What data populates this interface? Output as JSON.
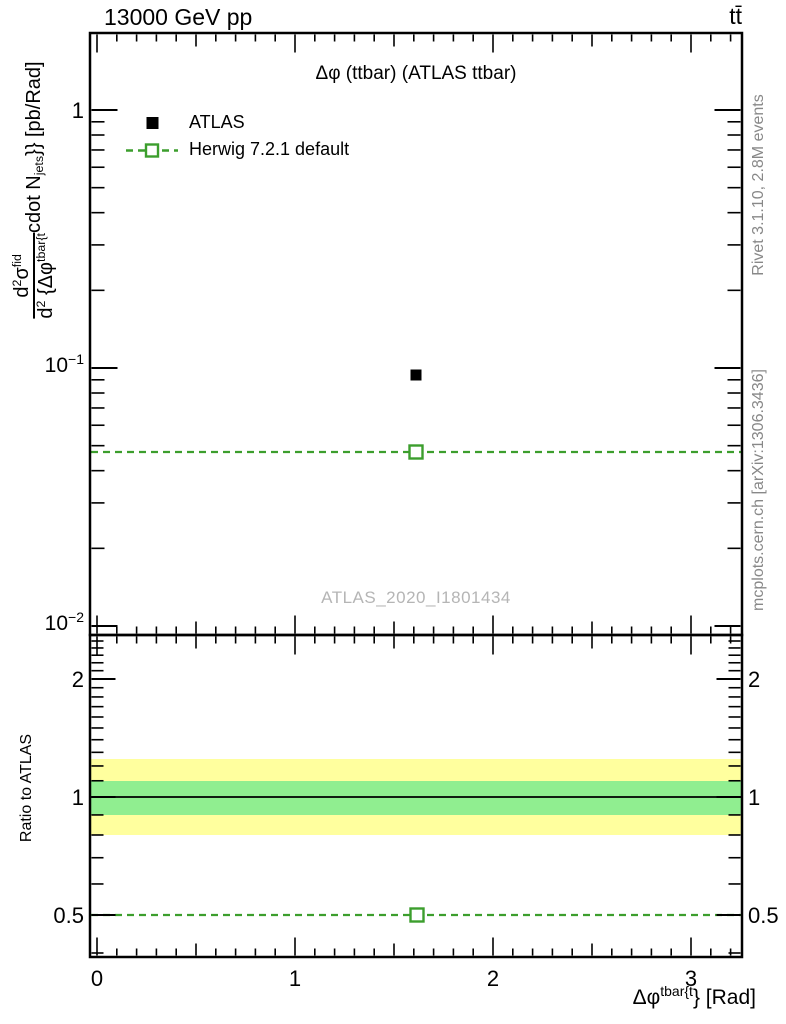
{
  "header": {
    "beam": "13000 GeV pp",
    "process": "tt̄"
  },
  "main_panel": {
    "title": "Δφ (ttbar) (ATLAS ttbar)",
    "watermark": "ATLAS_2020_I1801434",
    "legend": {
      "atlas_label": "ATLAS",
      "herwig_label": "Herwig 7.2.1 default"
    },
    "ylabel": {
      "num_d": "d",
      "num_exp": "2",
      "num_sigma": "σ",
      "num_sup": "fid",
      "den_d": "d",
      "den_exp": "2",
      "den_mid": " {Δφ",
      "den_sup": "tbar{t",
      "tail_cdot": " cdot N",
      "tail_sub": "jets",
      "tail_end": "}} [pb/Rad]"
    },
    "ytick_1": "1",
    "ytick_01_base": "10",
    "ytick_01_exp": "−1",
    "ytick_001_base": "10",
    "ytick_001_exp": "−2"
  },
  "ratio_panel": {
    "ylabel": "Ratio to ATLAS",
    "yticks_left": [
      "2",
      "1",
      "0.5"
    ],
    "yticks_right": [
      "2",
      "1",
      "0.5"
    ]
  },
  "xaxis": {
    "ticks": [
      "0",
      "1",
      "2",
      "3"
    ],
    "label_base": "Δφ",
    "label_sup": "tbar{t",
    "label_end": "} [Rad]"
  },
  "sidebar": {
    "top": "Rivet 3.1.10,  2.8M events",
    "bottom": "mcplots.cern.ch [arXiv:1306.3436]"
  },
  "colors": {
    "herwig_green": "#3c9e2d",
    "band_yellow": "#ffff9e",
    "band_green": "#90ee90",
    "watermark_gray": "#b5b5b5",
    "side_text_gray": "#888888"
  },
  "chart_data": {
    "type": "scatter",
    "title": "Δφ (ttbar) (ATLAS ttbar)",
    "xlabel": "Δφ^{tbar{t}} [Rad]",
    "ylabel": "d^2σ^{fid} / d^2{Δφ^{tbar{t}} cdot N_{jets}} [pb/Rad]",
    "x_range": [
      -0.04,
      3.26
    ],
    "y_scale": "log",
    "y_range": [
      0.0092,
      2.0
    ],
    "xticks": [
      0,
      1,
      2,
      3
    ],
    "yticks": [
      1,
      0.1,
      0.01
    ],
    "grid": false,
    "legend_position": "top-left",
    "series": [
      {
        "name": "ATLAS",
        "marker": "filled-square",
        "color": "#000000",
        "x": [
          1.6
        ],
        "y": [
          0.094
        ]
      },
      {
        "name": "Herwig 7.2.1 default",
        "marker": "open-square",
        "line_style": "dashed",
        "color": "#3c9e2d",
        "x": [
          1.6
        ],
        "y": [
          0.047
        ],
        "line_x_span": [
          -0.04,
          3.26
        ]
      }
    ],
    "ratio_panel": {
      "ylabel": "Ratio to ATLAS",
      "y_scale": "log",
      "y_range": [
        0.39,
        2.6
      ],
      "yticks": [
        0.5,
        1,
        2
      ],
      "reference_line": 1.0,
      "bands": [
        {
          "range": [
            0.8,
            1.25
          ],
          "color": "#ffff9e"
        },
        {
          "range": [
            0.9,
            1.1
          ],
          "color": "#90ee90"
        }
      ],
      "series": [
        {
          "name": "Herwig 7.2.1 default",
          "x": [
            1.6
          ],
          "y": [
            0.5
          ],
          "color": "#3c9e2d",
          "line_style": "dashed",
          "marker": "open-square"
        }
      ]
    }
  }
}
